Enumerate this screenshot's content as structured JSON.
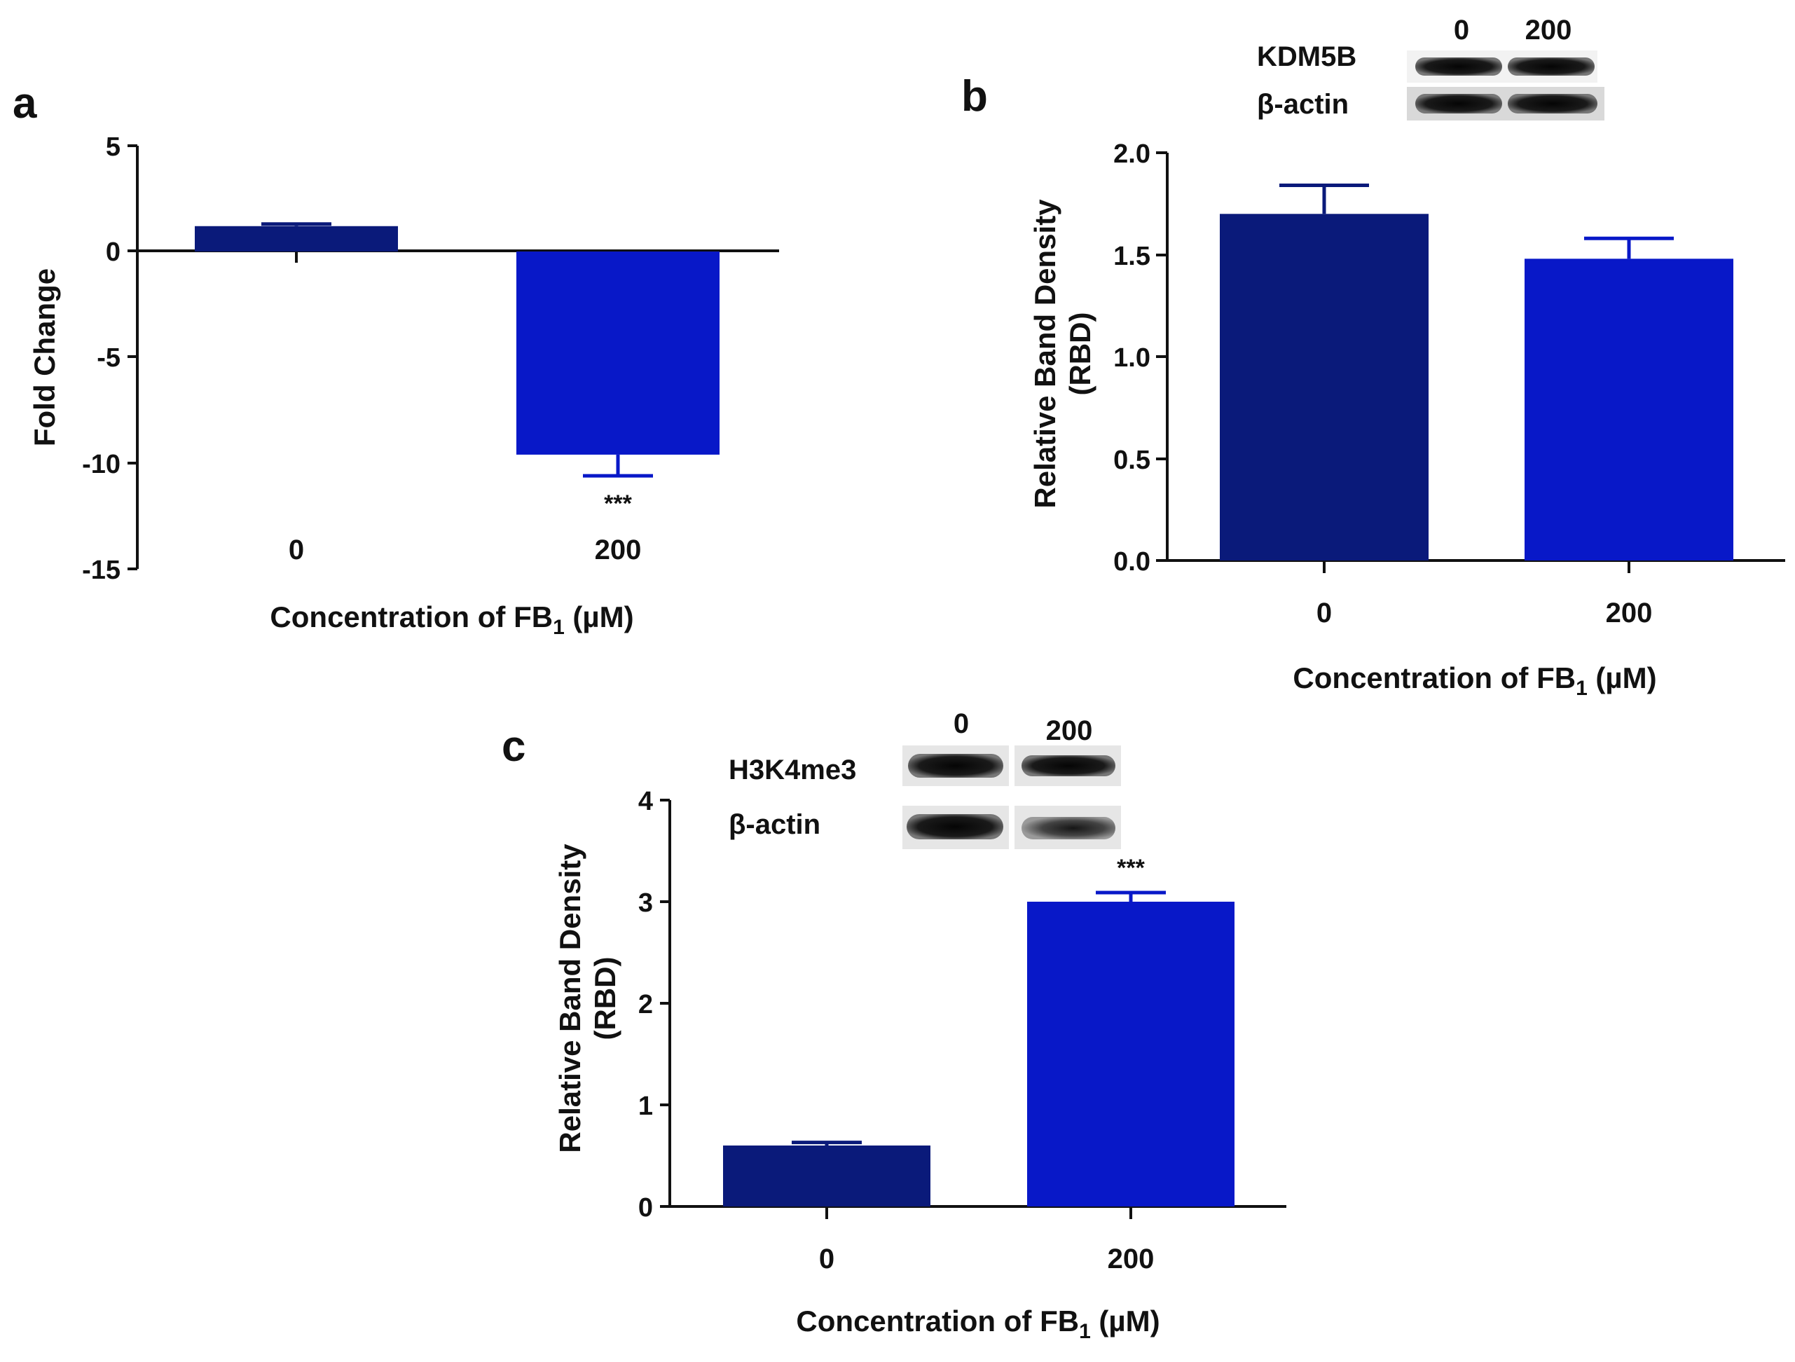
{
  "colors": {
    "control": "#0a1a7a",
    "treated": "#0818c8",
    "axis": "#111111",
    "blot": "#111111"
  },
  "chart_data": [
    {
      "panel": "a",
      "type": "bar",
      "categories": [
        "0",
        "200"
      ],
      "values": [
        1.2,
        -9.6
      ],
      "errors": [
        0.1,
        1.0
      ],
      "significance": [
        "",
        "***"
      ],
      "ylabel": "Fold Change",
      "xlabel_main": "Concentration of FB",
      "xlabel_sub": "1",
      "xlabel_unit": " (µM)",
      "ylim": [
        -15,
        5
      ],
      "yticks": [
        "5",
        "0",
        "-5",
        "-10",
        "-15"
      ],
      "yticks_values": [
        5,
        0,
        -5,
        -10,
        -15
      ]
    },
    {
      "panel": "b",
      "type": "bar",
      "categories": [
        "0",
        "200"
      ],
      "values": [
        1.7,
        1.48
      ],
      "errors": [
        0.14,
        0.1
      ],
      "significance": [
        "",
        ""
      ],
      "ylabel": "Relative Band Density",
      "ylabel2": "(RBD)",
      "xlabel_main": "Concentration of FB",
      "xlabel_sub": "1",
      "xlabel_unit": " (µM)",
      "ylim": [
        0,
        2.0
      ],
      "yticks": [
        "2.0",
        "1.5",
        "1.0",
        "0.5",
        "0.0"
      ],
      "yticks_values": [
        2.0,
        1.5,
        1.0,
        0.5,
        0.0
      ],
      "blot": {
        "lanes": [
          "0",
          "200"
        ],
        "rows": [
          "KDM5B",
          "β-actin"
        ]
      }
    },
    {
      "panel": "c",
      "type": "bar",
      "categories": [
        "0",
        "200"
      ],
      "values": [
        0.6,
        3.0
      ],
      "errors": [
        0.03,
        0.09
      ],
      "significance": [
        "",
        "***"
      ],
      "ylabel": "Relative Band Density",
      "ylabel2": "(RBD)",
      "xlabel_main": "Concentration of FB",
      "xlabel_sub": "1",
      "xlabel_unit": " (µM)",
      "ylim": [
        0,
        4
      ],
      "yticks": [
        "4",
        "3",
        "2",
        "1",
        "0"
      ],
      "yticks_values": [
        4,
        3,
        2,
        1,
        0
      ],
      "blot": {
        "lanes": [
          "0",
          "200"
        ],
        "rows": [
          "H3K4me3",
          "β-actin"
        ]
      }
    }
  ]
}
